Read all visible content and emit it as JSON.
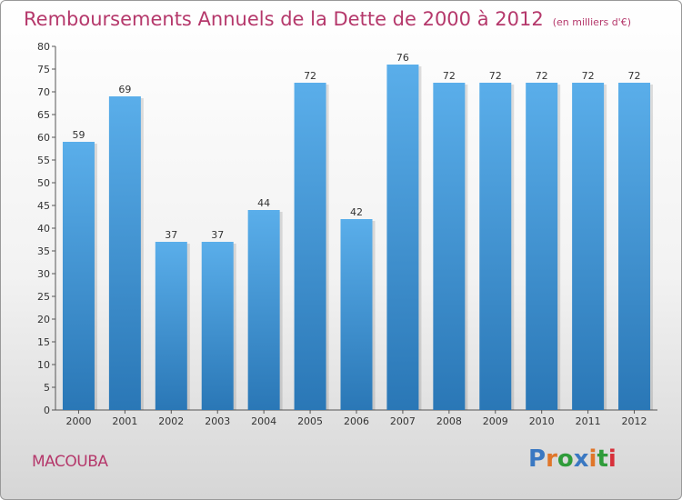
{
  "header": {
    "title": "Remboursements Annuels de la Dette de 2000 à 2012",
    "subtitle": "(en milliers d'€)"
  },
  "footer": {
    "commune": "MACOUBA",
    "logo_text": "Proxiti"
  },
  "colors": {
    "bar_top": "#5aaeea",
    "bar_bottom": "#2a77b6",
    "title": "#b5386b",
    "logo": [
      "#3a78c2",
      "#e0762a",
      "#2f9c3a",
      "#3a78c2",
      "#e0762a",
      "#2f9c3a",
      "#d7303a"
    ]
  },
  "chart_data": {
    "type": "bar",
    "title": "Remboursements Annuels de la Dette de 2000 à 2012",
    "subtitle": "(en milliers d'€)",
    "categories": [
      "2000",
      "2001",
      "2002",
      "2003",
      "2004",
      "2005",
      "2006",
      "2007",
      "2008",
      "2009",
      "2010",
      "2011",
      "2012"
    ],
    "values": [
      59,
      69,
      37,
      37,
      44,
      72,
      42,
      76,
      72,
      72,
      72,
      72,
      72
    ],
    "ylim": [
      0,
      80
    ],
    "yticks": [
      0,
      5,
      10,
      15,
      20,
      25,
      30,
      35,
      40,
      45,
      50,
      55,
      60,
      65,
      70,
      75,
      80
    ],
    "grid": false,
    "data_labels": true
  }
}
